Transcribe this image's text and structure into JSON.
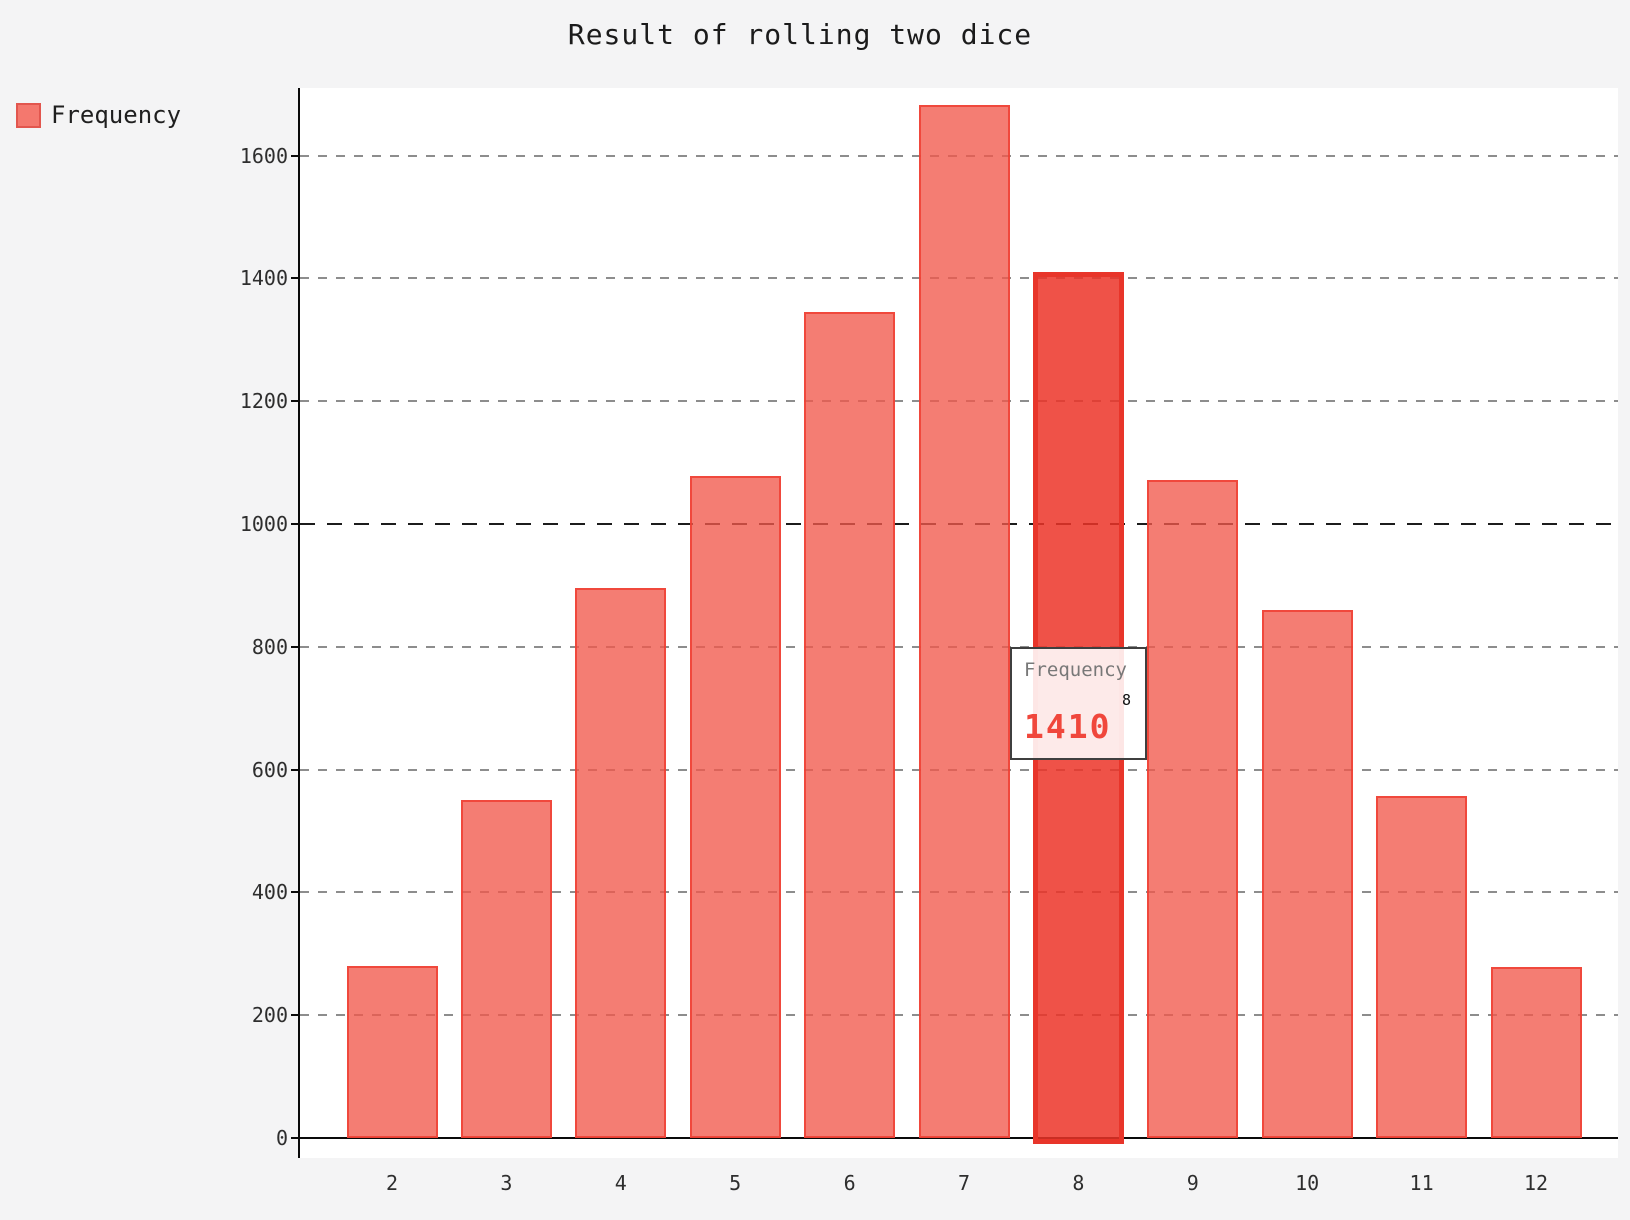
{
  "title": "Result of rolling two dice",
  "legend": {
    "label": "Frequency"
  },
  "tooltip": {
    "series": "Frequency",
    "category": "8",
    "value": "1410"
  },
  "colors": {
    "page_background": "#f4f4f5",
    "plot_background": "#ffffff",
    "bar_fill": "#f15a4c",
    "bar_border": "#ee3e32",
    "bar_highlight_fill": "#ec3428",
    "bar_highlight_border": "#e8352a",
    "gridline": "#8d8d8d",
    "gridline_emphasized": "#1c1c1c",
    "axis_line": "#0a0a0a",
    "tooltip_value_color": "#f0473c",
    "tooltip_border": "#3f3f3f"
  },
  "chart_data": {
    "type": "bar",
    "title": "Result of rolling two dice",
    "categories": [
      "2",
      "3",
      "4",
      "5",
      "6",
      "7",
      "8",
      "9",
      "10",
      "11",
      "12"
    ],
    "series": [
      {
        "name": "Frequency",
        "values": [
          280,
          550,
          895,
          1078,
          1345,
          1682,
          1410,
          1072,
          860,
          557,
          278
        ]
      }
    ],
    "highlighted_category": "8",
    "highlighted_value": 1410,
    "xlabel": "",
    "ylabel": "",
    "y_ticks": [
      0,
      200,
      400,
      600,
      800,
      1000,
      1200,
      1400,
      1600
    ],
    "ylim": [
      0,
      1710
    ],
    "emphasized_gridline": 1000,
    "grid": "horizontal-dashed",
    "legend_position": "top-left",
    "tooltip_shown_on": "8"
  }
}
